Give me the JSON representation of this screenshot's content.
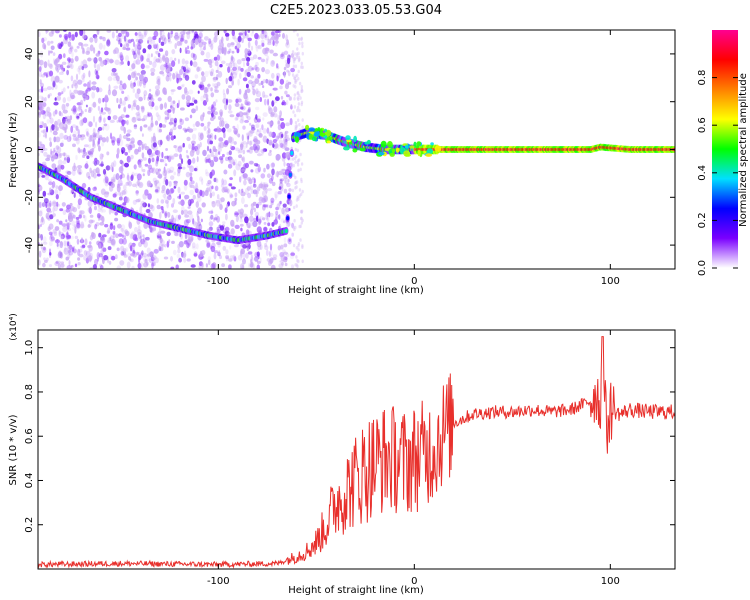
{
  "figure_title": "C2E5.2023.033.05.53.G04",
  "chart_data": [
    {
      "type": "heatmap",
      "xlabel": "Height of straight line (km)",
      "ylabel": "Frequency (Hz)",
      "xlim": [
        -192,
        133
      ],
      "ylim": [
        -50,
        50
      ],
      "xticks": [
        -100,
        0,
        100
      ],
      "yticks": [
        -40,
        -20,
        0,
        20,
        40
      ],
      "xtick_labels": [
        "-100",
        "0",
        "100"
      ],
      "ytick_labels": [
        "-40",
        "-20",
        "0",
        "20",
        "40"
      ],
      "grid": false,
      "colorbar": {
        "label": "Normalized spectral amplitude",
        "range": [
          0,
          1
        ],
        "ticks": [
          0.0,
          0.2,
          0.4,
          0.6,
          0.8
        ],
        "tick_labels": [
          "0.0",
          "0.2",
          "0.4",
          "0.6",
          "0.8"
        ],
        "colormap": [
          "#ffffff",
          "#7a00ff",
          "#0000ff",
          "#00e0ff",
          "#00ff00",
          "#ffff00",
          "#ff8000",
          "#ff0000",
          "#ff0090"
        ]
      },
      "noise_region_x": [
        -192,
        -62
      ],
      "signal_track": {
        "x": [
          -192,
          -180,
          -165,
          -150,
          -135,
          -120,
          -105,
          -90,
          -75,
          -65,
          -62,
          -55,
          -45,
          -35,
          -25,
          -15,
          -5,
          0,
          10,
          50,
          90,
          95,
          110,
          133
        ],
        "y": [
          -7,
          -12,
          -20,
          -25,
          -30,
          -33,
          -36,
          -38,
          -36,
          -34,
          5,
          7,
          6,
          3,
          1,
          0,
          0,
          0,
          0,
          0,
          0,
          1,
          0,
          0
        ]
      }
    },
    {
      "type": "line",
      "xlabel": "Height of straight line (km)",
      "ylabel": "SNR (10 * v/v)",
      "y_multiplier": "(x10⁴)",
      "xlim": [
        -192,
        133
      ],
      "ylim": [
        0,
        1.08
      ],
      "xticks": [
        -100,
        0,
        100
      ],
      "yticks": [
        0.2,
        0.4,
        0.6,
        0.8,
        1.0
      ],
      "xtick_labels": [
        "-100",
        "0",
        "100"
      ],
      "ytick_labels": [
        "0.2",
        "0.4",
        "0.6",
        "0.8",
        "1.0"
      ],
      "grid": false,
      "color": "#e8302c",
      "series": [
        {
          "x": [
            -192,
            -150,
            -100,
            -70,
            -62,
            -55,
            -50,
            -45,
            -40,
            -35,
            -30,
            -25,
            -20,
            -15,
            -10,
            -5,
            0,
            5,
            10,
            15,
            20,
            25,
            30,
            40,
            50,
            60,
            70,
            80,
            85,
            90,
            93,
            95,
            96,
            98,
            100,
            105,
            110,
            120,
            133
          ],
          "y": [
            0.02,
            0.025,
            0.02,
            0.025,
            0.05,
            0.08,
            0.12,
            0.2,
            0.3,
            0.35,
            0.4,
            0.45,
            0.48,
            0.5,
            0.5,
            0.48,
            0.5,
            0.52,
            0.55,
            0.62,
            0.66,
            0.68,
            0.7,
            0.71,
            0.71,
            0.72,
            0.71,
            0.72,
            0.74,
            0.76,
            0.8,
            0.72,
            1.05,
            0.62,
            0.72,
            0.7,
            0.72,
            0.71,
            0.71
          ]
        }
      ],
      "peak": {
        "x": 96,
        "y": 1.05
      }
    }
  ]
}
